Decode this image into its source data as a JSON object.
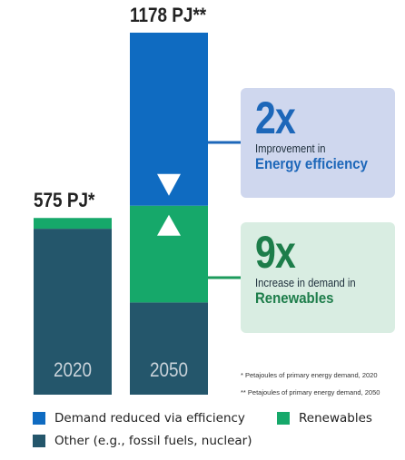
{
  "chart_data": {
    "type": "bar",
    "stacked": true,
    "categories": [
      "2020",
      "2050"
    ],
    "totals": [
      "575 PJ*",
      "1178 PJ**"
    ],
    "total_values": [
      575,
      1178
    ],
    "series": [
      {
        "name": "Other (e.g., fossil fuels, nuclear)",
        "color": "#24566b",
        "values": [
          540,
          300
        ]
      },
      {
        "name": "Renewables",
        "color": "#16a86a",
        "values": [
          35,
          315
        ]
      },
      {
        "name": "Demand reduced via efficiency",
        "color": "#0f6bc1",
        "values": [
          0,
          563
        ]
      }
    ],
    "arrows": [
      "down",
      "up"
    ],
    "ylim": [
      0,
      1178
    ],
    "grid": false,
    "legend_position": "bottom"
  },
  "callouts": {
    "efficiency": {
      "big": "2x",
      "line1": "Improvement in",
      "line2": "Energy efficiency"
    },
    "renewables": {
      "big": "9x",
      "line1": "Increase in demand in",
      "line2": "Renewables"
    }
  },
  "footnotes": [
    "* Petajoules of primary energy demand, 2020",
    "** Petajoules of primary energy demand, 2050"
  ],
  "legend": {
    "efficiency": "Demand reduced via efficiency",
    "renewables": "Renewables",
    "other": "Other (e.g., fossil fuels, nuclear)"
  }
}
